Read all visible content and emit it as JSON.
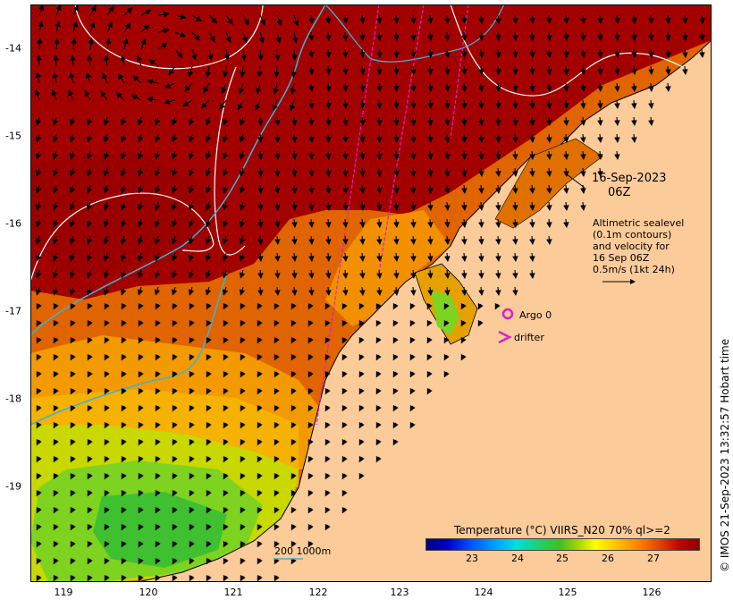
{
  "map": {
    "x_ticks": [
      "119",
      "120",
      "121",
      "122",
      "123",
      "124",
      "125",
      "126"
    ],
    "y_ticks": [
      "-14",
      "-15",
      "-16",
      "-17",
      "-18",
      "-19"
    ],
    "land_color": "#fccb9a",
    "sea_palette": {
      "hot": "#a00000",
      "warm": "#e05a00",
      "mid": "#f5a000",
      "cool": "#7ed320"
    },
    "contour_color": "#ffffff",
    "isobath_color": "#3bb3d6",
    "track_color": "#e01ec8"
  },
  "annotations": {
    "date_line1": "16-Sep-2023",
    "date_line2": "06Z",
    "altimetric": [
      "Altimetric sealevel",
      "(0.1m contours)",
      "and velocity for",
      "16 Sep 06Z",
      "0.5m/s (1kt 24h)"
    ],
    "argo_label": "Argo 0",
    "drifter_label": "drifter",
    "scale_label": "200  1000m"
  },
  "colorbar": {
    "title": "Temperature (°C) VIIRS_N20 70% ql>=2",
    "ticks": [
      "23",
      "24",
      "25",
      "26",
      "27"
    ]
  },
  "credit": "© IMOS 21-Sep-2023 13:32:57 Hobart time"
}
